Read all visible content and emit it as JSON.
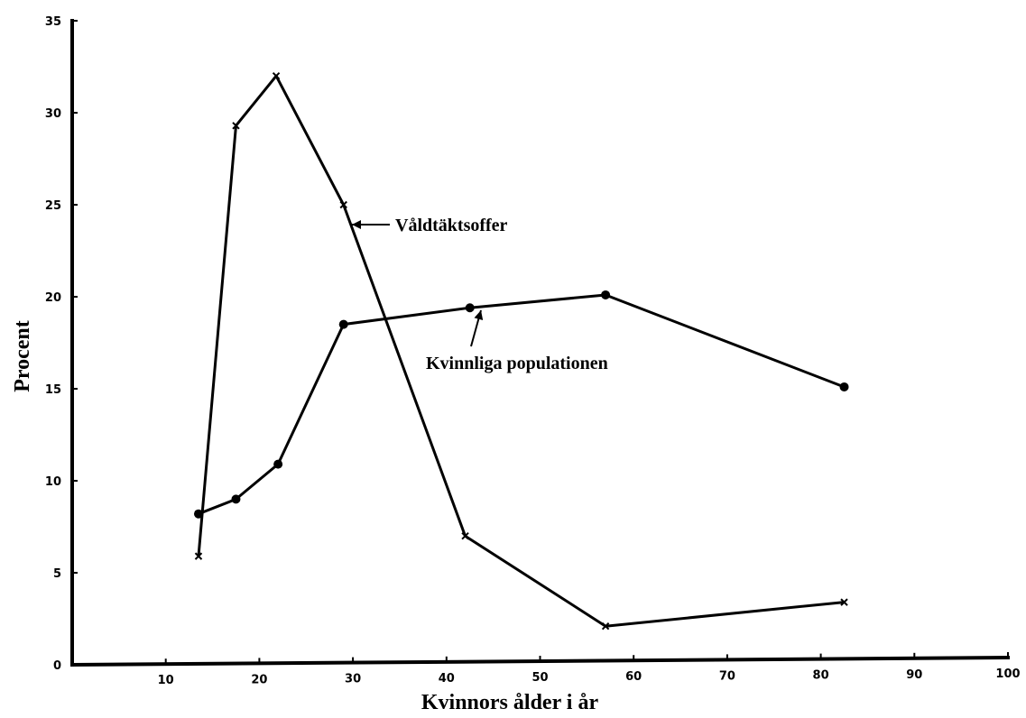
{
  "chart_data": {
    "type": "line",
    "title": "",
    "xlabel": "Kvinnors ålder i år",
    "ylabel": "Procent",
    "xlim": [
      0,
      100
    ],
    "ylim": [
      0,
      35
    ],
    "x_ticks": [
      10,
      20,
      30,
      40,
      50,
      60,
      70,
      80,
      90,
      100
    ],
    "y_ticks": [
      0,
      5,
      10,
      15,
      20,
      25,
      30,
      35
    ],
    "grid": false,
    "series": [
      {
        "name": "Våldtäktsoffer",
        "marker": "x",
        "points": [
          {
            "x": 13.5,
            "y": 5.9
          },
          {
            "x": 17.5,
            "y": 29.3
          },
          {
            "x": 21.8,
            "y": 32.0
          },
          {
            "x": 29.0,
            "y": 25.0
          },
          {
            "x": 42.0,
            "y": 7.0
          },
          {
            "x": 57.0,
            "y": 2.1
          },
          {
            "x": 82.5,
            "y": 3.4
          }
        ]
      },
      {
        "name": "Kvinnliga populationen",
        "marker": "dot",
        "points": [
          {
            "x": 13.5,
            "y": 8.2
          },
          {
            "x": 17.5,
            "y": 9.0
          },
          {
            "x": 22.0,
            "y": 10.9
          },
          {
            "x": 29.0,
            "y": 18.5
          },
          {
            "x": 42.5,
            "y": 19.4
          },
          {
            "x": 57.0,
            "y": 20.1
          },
          {
            "x": 82.5,
            "y": 15.1
          }
        ]
      }
    ],
    "annotations": [
      {
        "text": "Våldtäktsoffer",
        "series": 0
      },
      {
        "text": "Kvinnliga populationen",
        "series": 1
      }
    ]
  }
}
